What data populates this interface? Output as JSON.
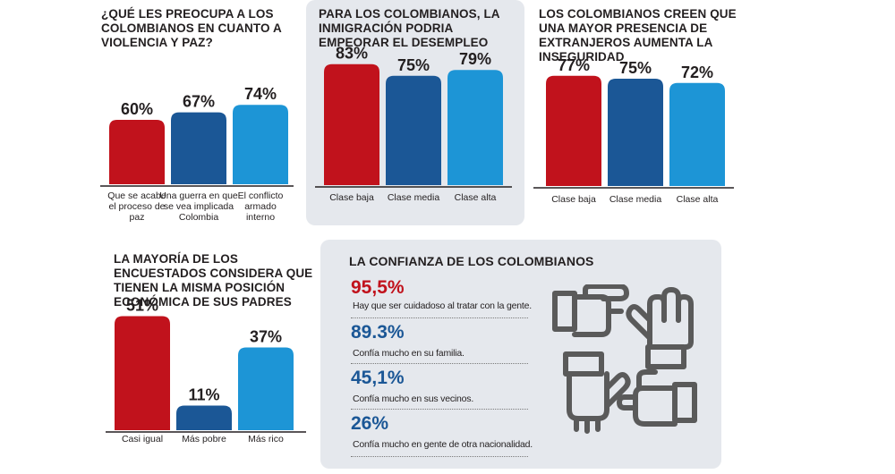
{
  "colors": {
    "red": "#c1121c",
    "navy": "#1b5796",
    "blue": "#1d95d6",
    "grey_panel": "#e5e8ed",
    "dark": "#231f20",
    "icon_grey": "#5a5a5a"
  },
  "chart_data": [
    {
      "type": "bar",
      "title": "¿QUÉ LES PREOCUPA A LOS COLOMBIANOS EN CUANTO A VIOLENCIA Y PAZ?",
      "categories": [
        "Que se acabe el proceso de paz",
        "Una guerra en que se vea implicada Colombia",
        "El conflicto armado interno"
      ],
      "category_lines": [
        [
          "Que se acabe",
          "el proceso de",
          "paz"
        ],
        [
          "Una guerra en que",
          "se vea implicada",
          "Colombia"
        ],
        [
          "El conflicto",
          "armado",
          "interno"
        ]
      ],
      "values": [
        60,
        67,
        74
      ],
      "labels": [
        "60%",
        "67%",
        "74%"
      ],
      "colors": [
        "#c1121c",
        "#1b5796",
        "#1d95d6"
      ],
      "ylim": [
        0,
        100
      ]
    },
    {
      "type": "bar",
      "title": "PARA LOS COLOMBIANOS, LA INMIGRACIÓN PODRIA EMPEORAR EL DESEMPLEO",
      "categories": [
        "Clase baja",
        "Clase media",
        "Clase alta"
      ],
      "category_lines": [
        [
          "Clase baja"
        ],
        [
          "Clase media"
        ],
        [
          "Clase alta"
        ]
      ],
      "values": [
        83,
        75,
        79
      ],
      "labels": [
        "83%",
        "75%",
        "79%"
      ],
      "colors": [
        "#c1121c",
        "#1b5796",
        "#1d95d6"
      ],
      "ylim": [
        0,
        100
      ]
    },
    {
      "type": "bar",
      "title": "LOS COLOMBIANOS CREEN QUE UNA MAYOR PRESENCIA DE EXTRANJEROS AUMENTA LA INSEGURIDAD",
      "categories": [
        "Clase baja",
        "Clase media",
        "Clase alta"
      ],
      "category_lines": [
        [
          "Clase baja"
        ],
        [
          "Clase media"
        ],
        [
          "Clase alta"
        ]
      ],
      "values": [
        77,
        75,
        72
      ],
      "labels": [
        "77%",
        "75%",
        "72%"
      ],
      "colors": [
        "#c1121c",
        "#1b5796",
        "#1d95d6"
      ],
      "ylim": [
        0,
        100
      ]
    },
    {
      "type": "bar",
      "title": "LA MAYORÍA DE LOS ENCUESTADOS CONSIDERA QUE TIENEN LA MISMA POSICIÓN ECONÓMICA DE SUS PADRES",
      "categories": [
        "Casi igual",
        "Más pobre",
        "Más rico"
      ],
      "category_lines": [
        [
          "Casi igual"
        ],
        [
          "Más pobre"
        ],
        [
          "Más rico"
        ]
      ],
      "values": [
        51,
        11,
        37
      ],
      "labels": [
        "51%",
        "11%",
        "37%"
      ],
      "colors": [
        "#c1121c",
        "#1b5796",
        "#1d95d6"
      ],
      "ylim": [
        0,
        55
      ]
    }
  ],
  "trust": {
    "title": "LA CONFIANZA DE LOS COLOMBIANOS",
    "items": [
      {
        "value": "95,5%",
        "text": "Hay que ser cuidadoso al tratar con la gente.",
        "color": "#c1121c"
      },
      {
        "value": "89.3%",
        "text": "Confía mucho en su familia.",
        "color": "#1b5796"
      },
      {
        "value": "45,1%",
        "text": "Confía mucho en sus vecinos.",
        "color": "#1b5796"
      },
      {
        "value": "26%",
        "text": "Confía mucho en gente de otra nacionalidad.",
        "color": "#1b5796"
      }
    ],
    "icon": "four-hands-trust-icon"
  }
}
